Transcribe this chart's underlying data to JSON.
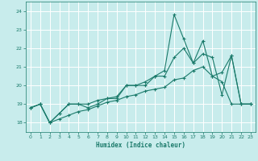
{
  "xlabel": "Humidex (Indice chaleur)",
  "background_color": "#c8ecec",
  "line_color": "#1a7a6a",
  "grid_color": "#ffffff",
  "xlim": [
    -0.5,
    23.5
  ],
  "ylim": [
    17.5,
    24.5
  ],
  "yticks": [
    18,
    19,
    20,
    21,
    22,
    23,
    24
  ],
  "xticks": [
    0,
    1,
    2,
    3,
    4,
    5,
    6,
    7,
    8,
    9,
    10,
    11,
    12,
    13,
    14,
    15,
    16,
    17,
    18,
    19,
    20,
    21,
    22,
    23
  ],
  "series": [
    {
      "x": [
        0,
        1,
        2,
        3,
        4,
        5,
        6,
        7,
        8,
        9,
        10,
        11,
        12,
        13,
        14,
        15,
        16,
        17,
        18,
        19,
        20,
        21,
        22,
        23
      ],
      "y": [
        18.8,
        19.0,
        18.0,
        18.2,
        18.4,
        18.6,
        18.7,
        18.9,
        19.1,
        19.2,
        19.4,
        19.5,
        19.7,
        19.8,
        19.9,
        20.3,
        20.4,
        20.8,
        21.0,
        20.5,
        20.2,
        19.0,
        19.0,
        19.0
      ]
    },
    {
      "x": [
        0,
        1,
        2,
        3,
        4,
        5,
        6,
        7,
        8,
        9,
        10,
        11,
        12,
        13,
        14,
        15,
        16,
        17,
        18,
        19,
        20,
        21,
        22,
        23
      ],
      "y": [
        18.8,
        19.0,
        18.0,
        18.5,
        19.0,
        19.0,
        19.0,
        19.2,
        19.3,
        19.4,
        20.0,
        20.0,
        20.0,
        20.5,
        20.5,
        21.5,
        22.0,
        21.2,
        21.7,
        21.5,
        19.5,
        21.6,
        19.0,
        19.0
      ]
    },
    {
      "x": [
        0,
        1,
        2,
        3,
        4,
        5,
        6,
        7,
        8,
        9,
        10,
        11,
        12,
        13,
        14,
        15,
        16,
        17,
        18,
        19,
        20,
        21,
        22,
        23
      ],
      "y": [
        18.8,
        19.0,
        18.0,
        18.5,
        19.0,
        19.0,
        18.8,
        19.0,
        19.3,
        19.3,
        20.0,
        20.0,
        20.2,
        20.5,
        20.8,
        23.8,
        22.5,
        21.2,
        22.4,
        20.5,
        20.7,
        21.6,
        19.0,
        19.0
      ]
    }
  ]
}
